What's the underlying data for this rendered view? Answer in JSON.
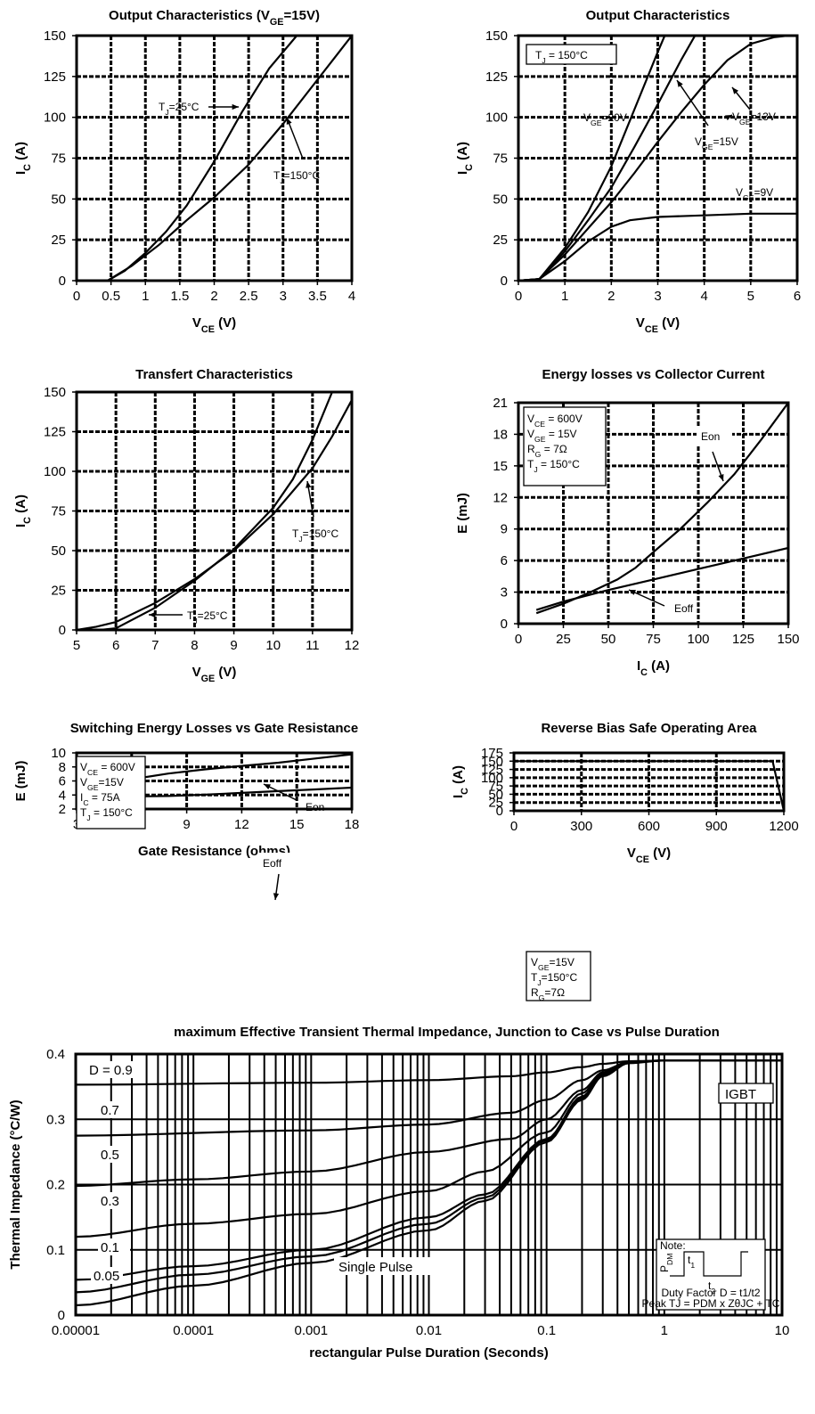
{
  "chart_data": [
    {
      "type": "line",
      "title": "Output Characteristics (V",
      "title_sub": "GE",
      "title_end": "=15V)",
      "xlabel": "V",
      "xlabel_sub": "CE",
      "xlabel_end": " (V)",
      "ylabel": "I",
      "ylabel_sub": "C",
      "ylabel_end": " (A)",
      "xlim": [
        0,
        4
      ],
      "ylim": [
        0,
        150
      ],
      "grid": true,
      "xticks": [
        "0",
        "0.5",
        "1",
        "1.5",
        "2",
        "2.5",
        "3",
        "3.5",
        "4"
      ],
      "yticks": [
        "0",
        "25",
        "50",
        "75",
        "100",
        "125",
        "150"
      ],
      "series": [
        {
          "name": "TJ=25°C",
          "x": [
            0.45,
            0.7,
            1.0,
            1.3,
            1.6,
            2.0,
            2.4,
            2.8,
            3.2,
            3.6
          ],
          "y": [
            0,
            6,
            17,
            30,
            46,
            73,
            103,
            130,
            150,
            170
          ]
        },
        {
          "name": "TJ=150°C",
          "x": [
            0.45,
            0.8,
            1.2,
            1.6,
            2.0,
            2.5,
            3.0,
            3.5,
            4.0
          ],
          "y": [
            0,
            9,
            22,
            37,
            51,
            71,
            96,
            123,
            150
          ]
        }
      ],
      "annotations": [
        {
          "text": "TJ=25°C",
          "base": "T",
          "sub": "J",
          "rest": "=25°C"
        },
        {
          "text": "TJ=150°C",
          "base": "T",
          "sub": "J",
          "rest": "=150°C"
        }
      ]
    },
    {
      "type": "line",
      "title": "Output Characteristics",
      "xlabel": "V",
      "xlabel_sub": "CE",
      "xlabel_end": " (V)",
      "ylabel": "I",
      "ylabel_sub": "C",
      "ylabel_end": " (A)",
      "xlim": [
        0,
        6
      ],
      "ylim": [
        0,
        150
      ],
      "grid": true,
      "xticks": [
        "0",
        "1",
        "2",
        "3",
        "4",
        "5",
        "6"
      ],
      "yticks": [
        "0",
        "25",
        "50",
        "75",
        "100",
        "125",
        "150"
      ],
      "legend": {
        "base": "T",
        "sub": "J",
        "rest": " = 150°C"
      },
      "series": [
        {
          "name": "VGE=20V",
          "x": [
            0,
            0.45,
            1.0,
            1.5,
            2.0,
            2.5,
            3.0,
            3.3
          ],
          "y": [
            0,
            1,
            20,
            42,
            70,
            105,
            140,
            160
          ]
        },
        {
          "name": "VGE=15V",
          "x": [
            0,
            0.45,
            1.0,
            1.5,
            2.0,
            2.5,
            3.0,
            3.5,
            4.0
          ],
          "y": [
            0,
            1,
            18,
            37,
            57,
            82,
            108,
            135,
            160
          ]
        },
        {
          "name": "VGE=13V",
          "x": [
            0,
            0.45,
            1.0,
            1.5,
            2.0,
            2.5,
            3.0,
            3.5,
            4.0,
            4.5,
            5.0,
            5.5,
            5.8
          ],
          "y": [
            0,
            1,
            16,
            32,
            48,
            66,
            85,
            103,
            120,
            135,
            145,
            149,
            150
          ]
        },
        {
          "name": "VGE=9V",
          "x": [
            0,
            0.45,
            1.0,
            1.5,
            2.0,
            2.4,
            3.0,
            4.0,
            5.0,
            6.0
          ],
          "y": [
            0,
            1,
            12,
            24,
            33,
            37,
            39,
            40,
            41,
            41
          ]
        }
      ],
      "annotations": [
        {
          "text": "VGE=20V",
          "base": "V",
          "sub": "GE",
          "rest": "=20V"
        },
        {
          "text": "VGE=13V",
          "base": "V",
          "sub": "GE",
          "rest": "=13V"
        },
        {
          "text": "VGE=15V",
          "base": "V",
          "sub": "GE",
          "rest": "=15V"
        },
        {
          "text": "VGE=9V",
          "base": "V",
          "sub": "GE",
          "rest": "=9V"
        }
      ]
    },
    {
      "type": "line",
      "title": "Transfert Characteristics",
      "xlabel": "V",
      "xlabel_sub": "GE",
      "xlabel_end": " (V)",
      "ylabel": "I",
      "ylabel_sub": "C",
      "ylabel_end": " (A)",
      "xlim": [
        5,
        12
      ],
      "ylim": [
        0,
        150
      ],
      "grid": true,
      "xticks": [
        "5",
        "6",
        "7",
        "8",
        "9",
        "10",
        "11",
        "12"
      ],
      "yticks": [
        "0",
        "25",
        "50",
        "75",
        "100",
        "125",
        "150"
      ],
      "series": [
        {
          "name": "TJ=25°C",
          "x": [
            5.6,
            6.0,
            7.0,
            8.0,
            9.0,
            10.0,
            10.5,
            11.0,
            11.5
          ],
          "y": [
            0,
            1,
            14,
            31,
            51,
            77,
            95,
            120,
            150
          ]
        },
        {
          "name": "TJ=150°C",
          "x": [
            5.0,
            5.5,
            6.0,
            7.0,
            8.0,
            9.0,
            10.0,
            11.0,
            11.5,
            12.0
          ],
          "y": [
            0,
            2,
            5,
            17,
            32,
            50,
            73,
            102,
            122,
            145
          ]
        }
      ],
      "annotations": [
        {
          "text": "TJ=150°C",
          "base": "T",
          "sub": "J",
          "rest": "=150°C"
        },
        {
          "text": "TJ=25°C",
          "base": "T",
          "sub": "J",
          "rest": "=25°C"
        }
      ]
    },
    {
      "type": "line",
      "title": "Energy losses vs Collector Current",
      "xlabel": "I",
      "xlabel_sub": "C",
      "xlabel_end": " (A)",
      "ylabel": "E (mJ)",
      "xlim": [
        0,
        150
      ],
      "ylim": [
        0,
        21
      ],
      "grid": true,
      "xticks": [
        "0",
        "25",
        "50",
        "75",
        "100",
        "125",
        "150"
      ],
      "yticks": [
        "0",
        "3",
        "6",
        "9",
        "12",
        "15",
        "18",
        "21"
      ],
      "conditions": [
        {
          "base": "V",
          "sub": "CE",
          "rest": " = 600V"
        },
        {
          "base": "V",
          "sub": "GE",
          "rest": " = 15V"
        },
        {
          "base": "R",
          "sub": "G",
          "rest": " = 7Ω"
        },
        {
          "base": "T",
          "sub": "J",
          "rest": " = 150°C"
        }
      ],
      "series": [
        {
          "name": "Eon",
          "x": [
            10,
            25,
            40,
            55,
            65,
            75,
            90,
            105,
            120,
            135,
            150
          ],
          "y": [
            1.0,
            1.9,
            3.0,
            4.2,
            5.3,
            6.8,
            9.0,
            11.5,
            14.2,
            17.5,
            21
          ]
        },
        {
          "name": "Eoff",
          "x": [
            10,
            25,
            50,
            75,
            100,
            125,
            150
          ],
          "y": [
            1.3,
            2.1,
            3.2,
            4.2,
            5.2,
            6.2,
            7.2
          ]
        }
      ],
      "annotations": [
        {
          "text": "Eon"
        },
        {
          "text": "Eoff"
        }
      ]
    },
    {
      "type": "line",
      "title": "Switching Energy Losses vs Gate Resistance",
      "xlabel": "Gate Resistance (ohms)",
      "ylabel": "E (mJ)",
      "xlim": [
        3,
        18
      ],
      "ylim": [
        2,
        10
      ],
      "grid": true,
      "xticks": [
        "3",
        "6",
        "9",
        "12",
        "15",
        "18"
      ],
      "yticks": [
        "2",
        "4",
        "6",
        "8",
        "10"
      ],
      "conditions": [
        {
          "base": "V",
          "sub": "CE",
          "rest": " = 600V"
        },
        {
          "base": "V",
          "sub": "GE",
          "rest": "=15V"
        },
        {
          "base": "I",
          "sub": "C",
          "rest": " = 75A"
        },
        {
          "base": "T",
          "sub": "J",
          "rest": " = 150°C"
        }
      ],
      "series": [
        {
          "name": "Eon",
          "x": [
            6.5,
            8,
            10,
            12,
            14,
            16,
            18
          ],
          "y": [
            6.45,
            7.05,
            7.65,
            8.15,
            8.6,
            9.2,
            9.8
          ]
        },
        {
          "name": "Eoff",
          "x": [
            6.5,
            8,
            9,
            10,
            12,
            14,
            16,
            18
          ],
          "y": [
            3.8,
            3.85,
            3.95,
            4.05,
            4.3,
            4.55,
            4.8,
            5.05
          ]
        }
      ],
      "annotations": [
        {
          "text": "Eon"
        },
        {
          "text": "Eoff"
        }
      ]
    },
    {
      "type": "line",
      "title": "Reverse Bias Safe Operating Area",
      "xlabel": "V",
      "xlabel_sub": "CE",
      "xlabel_end": " (V)",
      "ylabel": "I",
      "ylabel_sub": "C",
      "ylabel_end": " (A)",
      "xlim": [
        0,
        1200
      ],
      "ylim": [
        0,
        175
      ],
      "grid": true,
      "xticks": [
        "0",
        "300",
        "600",
        "900",
        "1200"
      ],
      "yticks": [
        "0",
        "25",
        "50",
        "75",
        "100",
        "125",
        "150",
        "175"
      ],
      "conditions": [
        {
          "base": "V",
          "sub": "GE",
          "rest": "=15V"
        },
        {
          "base": "T",
          "sub": "J",
          "rest": "=150°C"
        },
        {
          "base": "R",
          "sub": "G",
          "rest": "=7Ω"
        }
      ],
      "series": [
        {
          "name": "RBSOA",
          "x": [
            0,
            1150,
            1200
          ],
          "y": [
            150,
            150,
            0
          ]
        }
      ]
    },
    {
      "type": "line",
      "title": "maximum Effective Transient Thermal Impedance, Junction to Case vs Pulse Duration",
      "xlabel": "rectangular Pulse Duration (Seconds)",
      "ylabel": "Thermal Impedance (°C/W)",
      "xscale": "log",
      "xlim": [
        1e-05,
        10
      ],
      "ylim": [
        0,
        0.4
      ],
      "grid": true,
      "xticks": [
        "0.00001",
        "0.0001",
        "0.001",
        "0.01",
        "0.1",
        "1",
        "10"
      ],
      "yticks": [
        "0",
        "0.1",
        "0.2",
        "0.3",
        "0.4"
      ],
      "legend": "IGBT",
      "series_labels": [
        "D = 0.9",
        "0.7",
        "0.5",
        "0.3",
        "0.1",
        "0.05",
        "Single Pulse"
      ],
      "series": [
        {
          "name": "D = 0.9",
          "x": [
            1e-05,
            0.001,
            0.01,
            0.05,
            0.1,
            0.2,
            0.3,
            0.5,
            1,
            10
          ],
          "y": [
            0.353,
            0.356,
            0.36,
            0.366,
            0.372,
            0.38,
            0.385,
            0.389,
            0.39,
            0.39
          ]
        },
        {
          "name": "0.7",
          "x": [
            1e-05,
            0.001,
            0.01,
            0.05,
            0.1,
            0.2,
            0.3,
            0.5,
            1,
            10
          ],
          "y": [
            0.275,
            0.283,
            0.292,
            0.31,
            0.33,
            0.36,
            0.375,
            0.388,
            0.39,
            0.39
          ]
        },
        {
          "name": "0.5",
          "x": [
            1e-05,
            0.0001,
            0.001,
            0.01,
            0.05,
            0.1,
            0.2,
            0.3,
            0.5,
            1,
            10
          ],
          "y": [
            0.198,
            0.208,
            0.22,
            0.25,
            0.27,
            0.3,
            0.345,
            0.372,
            0.388,
            0.39,
            0.39
          ]
        },
        {
          "name": "0.3",
          "x": [
            1e-05,
            0.0001,
            0.001,
            0.01,
            0.03,
            0.1,
            0.2,
            0.3,
            0.5,
            1,
            10
          ],
          "y": [
            0.12,
            0.14,
            0.155,
            0.19,
            0.22,
            0.28,
            0.34,
            0.37,
            0.388,
            0.39,
            0.39
          ]
        },
        {
          "name": "0.1",
          "x": [
            1e-05,
            0.0001,
            0.001,
            0.01,
            0.03,
            0.1,
            0.2,
            0.3,
            0.5,
            1,
            10
          ],
          "y": [
            0.054,
            0.075,
            0.1,
            0.15,
            0.185,
            0.27,
            0.335,
            0.368,
            0.387,
            0.39,
            0.39
          ]
        },
        {
          "name": "0.05",
          "x": [
            1e-05,
            0.0001,
            0.001,
            0.01,
            0.03,
            0.1,
            0.2,
            0.3,
            0.5,
            1,
            10
          ],
          "y": [
            0.035,
            0.062,
            0.09,
            0.14,
            0.18,
            0.268,
            0.333,
            0.367,
            0.387,
            0.39,
            0.39
          ]
        },
        {
          "name": "Single Pulse",
          "x": [
            1e-05,
            0.0001,
            0.001,
            0.01,
            0.03,
            0.1,
            0.2,
            0.3,
            0.5,
            1,
            10
          ],
          "y": [
            0.015,
            0.045,
            0.08,
            0.13,
            0.175,
            0.265,
            0.33,
            0.366,
            0.386,
            0.39,
            0.39
          ]
        }
      ],
      "note": {
        "title": "Note:",
        "pdm": "P",
        "pdm_sub": "DM",
        "t1": "t",
        "t1_sub": "1",
        "t2": "t",
        "t2_sub": "2",
        "duty": "Duty Factor  D = t1/t2",
        "peak": "Peak TJ = PDM x ZθJC + TC"
      }
    }
  ]
}
